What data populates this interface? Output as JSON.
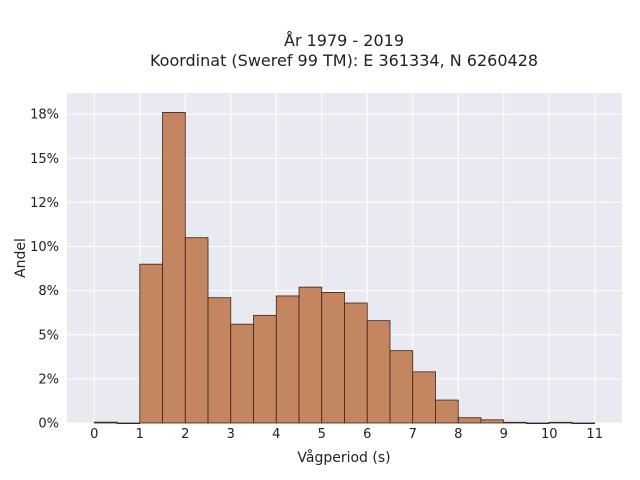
{
  "chart_data": {
    "type": "bar",
    "title_line1": "År 1979 - 2019",
    "title_line2": "Koordinat (Sweref 99 TM): E 361334, N 6260428",
    "xlabel": "Vågperiod (s)",
    "ylabel": "Andel",
    "xlim": [
      -0.6,
      11.6
    ],
    "ylim": [
      0,
      0.187
    ],
    "x_ticks": [
      0,
      1,
      2,
      3,
      4,
      5,
      6,
      7,
      8,
      9,
      10,
      11
    ],
    "y_ticks": [
      {
        "value": 0,
        "label": "0%"
      },
      {
        "value": 0.025,
        "label": "2%"
      },
      {
        "value": 0.05,
        "label": "5%"
      },
      {
        "value": 0.075,
        "label": "8%"
      },
      {
        "value": 0.1,
        "label": "10%"
      },
      {
        "value": 0.125,
        "label": "12%"
      },
      {
        "value": 0.15,
        "label": "15%"
      },
      {
        "value": 0.175,
        "label": "18%"
      }
    ],
    "bin_width": 0.5,
    "bins": [
      {
        "start": 0.0,
        "value": 0.0005
      },
      {
        "start": 0.5,
        "value": 0.0
      },
      {
        "start": 1.0,
        "value": 0.09
      },
      {
        "start": 1.5,
        "value": 0.176
      },
      {
        "start": 2.0,
        "value": 0.105
      },
      {
        "start": 2.5,
        "value": 0.071
      },
      {
        "start": 3.0,
        "value": 0.056
      },
      {
        "start": 3.5,
        "value": 0.061
      },
      {
        "start": 4.0,
        "value": 0.072
      },
      {
        "start": 4.5,
        "value": 0.077
      },
      {
        "start": 5.0,
        "value": 0.074
      },
      {
        "start": 5.5,
        "value": 0.068
      },
      {
        "start": 6.0,
        "value": 0.058
      },
      {
        "start": 6.5,
        "value": 0.041
      },
      {
        "start": 7.0,
        "value": 0.029
      },
      {
        "start": 7.5,
        "value": 0.013
      },
      {
        "start": 8.0,
        "value": 0.003
      },
      {
        "start": 8.5,
        "value": 0.0018
      },
      {
        "start": 9.0,
        "value": 0.0004
      },
      {
        "start": 9.5,
        "value": 0.0
      },
      {
        "start": 10.0,
        "value": 0.0004
      },
      {
        "start": 10.5,
        "value": 0.0
      }
    ],
    "grid": true,
    "colors": {
      "bar_fill": "#c07c55",
      "bar_edge": "#3a2416",
      "plot_bg": "#e9e9f1",
      "grid": "#ffffff"
    }
  }
}
